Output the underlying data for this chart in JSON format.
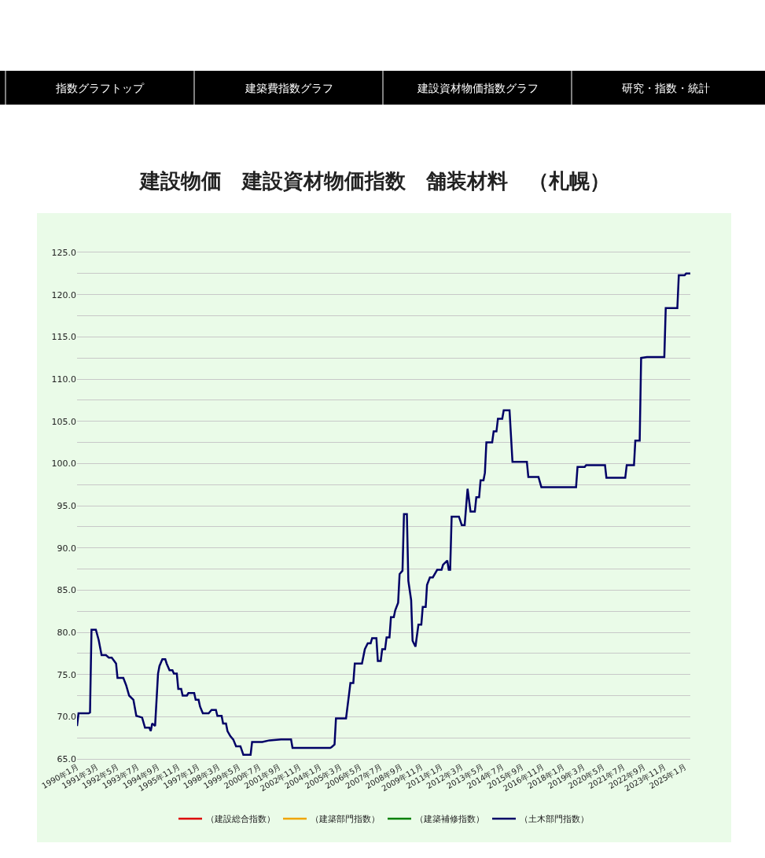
{
  "chart_data": {
    "type": "line",
    "title": "建設物価　建設資材物価指数　舗装材料　（札幌）",
    "annotations": [
      "指数グラフトップ",
      "建築費指数グラフ",
      "建設資材物価指数グラフ",
      "研究・指数・統計"
    ],
    "xlim": [
      "1990-01",
      "2025-05"
    ],
    "xticks": [
      {
        "value": "1990-01",
        "label": "1990年1月"
      },
      {
        "value": "1991-03",
        "label": "1991年3月"
      },
      {
        "value": "1992-05",
        "label": "1992年5月"
      },
      {
        "value": "1993-07",
        "label": "1993年7月"
      },
      {
        "value": "1994-09",
        "label": "1994年9月"
      },
      {
        "value": "1995-11",
        "label": "1995年11月"
      },
      {
        "value": "1997-01",
        "label": "1997年1月"
      },
      {
        "value": "1998-03",
        "label": "1998年3月"
      },
      {
        "value": "1999-05",
        "label": "1999年5月"
      },
      {
        "value": "2000-07",
        "label": "2000年7月"
      },
      {
        "value": "2001-09",
        "label": "2001年9月"
      },
      {
        "value": "2002-11",
        "label": "2002年11月"
      },
      {
        "value": "2004-01",
        "label": "2004年1月"
      },
      {
        "value": "2005-03",
        "label": "2005年3月"
      },
      {
        "value": "2006-05",
        "label": "2006年5月"
      },
      {
        "value": "2007-07",
        "label": "2007年7月"
      },
      {
        "value": "2008-09",
        "label": "2008年9月"
      },
      {
        "value": "2009-11",
        "label": "2009年11月"
      },
      {
        "value": "2011-01",
        "label": "2011年1月"
      },
      {
        "value": "2012-03",
        "label": "2012年3月"
      },
      {
        "value": "2013-05",
        "label": "2013年5月"
      },
      {
        "value": "2014-07",
        "label": "2014年7月"
      },
      {
        "value": "2015-09",
        "label": "2015年9月"
      },
      {
        "value": "2016-11",
        "label": "2016年11月"
      },
      {
        "value": "2018-01",
        "label": "2018年1月"
      },
      {
        "value": "2019-03",
        "label": "2019年3月"
      },
      {
        "value": "2020-05",
        "label": "2020年5月"
      },
      {
        "value": "2021-07",
        "label": "2021年7月"
      },
      {
        "value": "2022-09",
        "label": "2022年9月"
      },
      {
        "value": "2023-11",
        "label": "2023年11月"
      },
      {
        "value": "2025-01",
        "label": "2025年1月"
      }
    ],
    "ylim": [
      65,
      125
    ],
    "yticks": [
      {
        "value": 65,
        "label": "65.0"
      },
      {
        "value": 67.5,
        "label": null
      },
      {
        "value": 70,
        "label": "70.0"
      },
      {
        "value": 72.5,
        "label": null
      },
      {
        "value": 75,
        "label": "75.0"
      },
      {
        "value": 77.5,
        "label": null
      },
      {
        "value": 80,
        "label": "80.0"
      },
      {
        "value": 82.5,
        "label": null
      },
      {
        "value": 85,
        "label": "85.0"
      },
      {
        "value": 87.5,
        "label": null
      },
      {
        "value": 90,
        "label": "90.0"
      },
      {
        "value": 92.5,
        "label": null
      },
      {
        "value": 95,
        "label": "95.0"
      },
      {
        "value": 97.5,
        "label": null
      },
      {
        "value": 100,
        "label": "100.0"
      },
      {
        "value": 102.5,
        "label": null
      },
      {
        "value": 105,
        "label": "105.0"
      },
      {
        "value": 107.5,
        "label": null
      },
      {
        "value": 110,
        "label": "110.0"
      },
      {
        "value": 112.5,
        "label": null
      },
      {
        "value": 115,
        "label": "115.0"
      },
      {
        "value": 117.5,
        "label": null
      },
      {
        "value": 120,
        "label": "120.0"
      },
      {
        "value": 122.5,
        "label": null
      },
      {
        "value": 125,
        "label": "125.0"
      }
    ],
    "grid": "y",
    "legend": "bottom",
    "marker": "none",
    "line_style": "solid",
    "series": [
      {
        "name": "（建設総合指数）",
        "color": "#dd0000"
      },
      {
        "name": "（建築部門指数）",
        "color": "#f0a500"
      },
      {
        "name": "（建築補修指数）",
        "color": "#008000"
      },
      {
        "name": "（土木部門指数）",
        "color": "#000066",
        "x": [
          "1990-01",
          "1990-02",
          "1990-09",
          "1990-10",
          "1990-11",
          "1991-02",
          "1991-04",
          "1991-06",
          "1991-09",
          "1991-11",
          "1992-01",
          "1992-04",
          "1992-05",
          "1992-09",
          "1992-11",
          "1993-01",
          "1993-04",
          "1993-06",
          "1993-10",
          "1993-12",
          "1994-03",
          "1994-04",
          "1994-05",
          "1994-07",
          "1994-09",
          "1994-10",
          "1994-12",
          "1995-02",
          "1995-03",
          "1995-05",
          "1995-07",
          "1995-08",
          "1995-10",
          "1995-11",
          "1996-01",
          "1996-02",
          "1996-05",
          "1996-06",
          "1996-10",
          "1996-11",
          "1997-01",
          "1997-02",
          "1997-04",
          "1997-08",
          "1997-10",
          "1998-01",
          "1998-02",
          "1998-05",
          "1998-06",
          "1998-08",
          "1998-09",
          "1998-11",
          "1999-01",
          "1999-03",
          "1999-06",
          "1999-08",
          "2000-01",
          "2000-02",
          "2000-09",
          "2001-02",
          "2001-10",
          "2002-05",
          "2002-06",
          "2004-08",
          "2004-09",
          "2004-11",
          "2004-12",
          "2005-07",
          "2005-09",
          "2005-10",
          "2005-12",
          "2006-01",
          "2006-06",
          "2006-08",
          "2006-10",
          "2006-12",
          "2007-01",
          "2007-04",
          "2007-05",
          "2007-07",
          "2007-08",
          "2007-10",
          "2007-11",
          "2008-01",
          "2008-02",
          "2008-04",
          "2008-05",
          "2008-07",
          "2008-08",
          "2008-10",
          "2008-11",
          "2009-01",
          "2009-02",
          "2009-04",
          "2009-05",
          "2009-07",
          "2009-09",
          "2009-11",
          "2009-12",
          "2010-02",
          "2010-03",
          "2010-05",
          "2010-07",
          "2010-10",
          "2011-01",
          "2011-02",
          "2011-05",
          "2011-06",
          "2011-07",
          "2011-08",
          "2012-01",
          "2012-03",
          "2012-05",
          "2012-07",
          "2012-09",
          "2012-12",
          "2013-01",
          "2013-03",
          "2013-04",
          "2013-06",
          "2013-07",
          "2013-08",
          "2013-12",
          "2014-01",
          "2014-03",
          "2014-04",
          "2014-07",
          "2014-08",
          "2014-12",
          "2015-02",
          "2015-12",
          "2016-01",
          "2016-08",
          "2016-10",
          "2018-10",
          "2018-11",
          "2019-04",
          "2019-05",
          "2020-06",
          "2020-07",
          "2021-08",
          "2021-09",
          "2022-02",
          "2022-03",
          "2022-06",
          "2022-07",
          "2022-11",
          "2023-11",
          "2023-12",
          "2024-08",
          "2024-09",
          "2025-01",
          "2025-02",
          "2025-05"
        ],
        "values": [
          68.9,
          70.4,
          70.4,
          70.5,
          80.3,
          80.3,
          79.1,
          77.3,
          77.3,
          77.0,
          77.0,
          76.3,
          74.6,
          74.6,
          73.7,
          72.5,
          72.0,
          70.1,
          69.9,
          68.7,
          68.7,
          68.3,
          69.2,
          68.9,
          75.1,
          76.0,
          76.8,
          76.8,
          76.3,
          75.5,
          75.5,
          75.1,
          75.1,
          73.3,
          73.3,
          72.5,
          72.5,
          72.8,
          72.8,
          72.0,
          72.0,
          71.2,
          70.4,
          70.4,
          70.8,
          70.8,
          70.1,
          70.1,
          69.2,
          69.2,
          68.3,
          67.7,
          67.3,
          66.5,
          66.5,
          65.5,
          65.5,
          67.0,
          67.0,
          67.2,
          67.3,
          67.3,
          66.3,
          66.3,
          66.4,
          66.7,
          69.8,
          69.8,
          72.6,
          74.0,
          74.0,
          76.3,
          76.3,
          78.0,
          78.7,
          78.7,
          79.3,
          79.3,
          76.6,
          76.6,
          78.0,
          78.0,
          79.4,
          79.4,
          81.8,
          81.8,
          82.6,
          83.5,
          86.9,
          87.3,
          94.0,
          94.0,
          86.1,
          83.8,
          79.0,
          78.3,
          80.9,
          80.9,
          83.0,
          83.0,
          85.6,
          86.5,
          86.5,
          87.4,
          87.4,
          88.0,
          88.5,
          87.4,
          87.4,
          93.7,
          93.7,
          92.7,
          92.7,
          97.0,
          94.3,
          94.3,
          96.0,
          96.0,
          98.0,
          98.0,
          98.9,
          102.5,
          102.5,
          103.8,
          103.8,
          105.3,
          105.3,
          106.3,
          106.3,
          100.2,
          100.2,
          98.4,
          98.4,
          97.2,
          97.2,
          99.6,
          99.6,
          99.8,
          99.8,
          98.3,
          98.3,
          99.8,
          99.8,
          102.7,
          102.7,
          112.5,
          112.6,
          112.6,
          118.4,
          118.4,
          122.3,
          122.3,
          122.5,
          122.5
        ]
      }
    ]
  }
}
